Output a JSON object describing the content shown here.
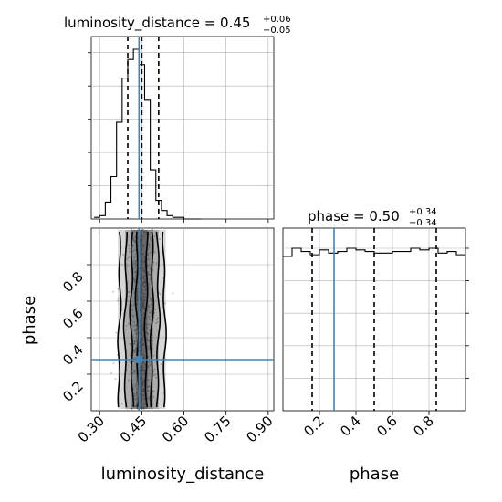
{
  "chart_data": {
    "type": "corner",
    "colors": {
      "truth": "#4682b4",
      "line": "#000000",
      "grid": "#b0b0b0",
      "points": "#9a9a9a"
    },
    "panels": {
      "top_left": {
        "type": "histogram",
        "variable": "luminosity_distance",
        "title_main": "luminosity_distance = 0.45",
        "title_sup": "+0.06",
        "title_sub": "−0.05",
        "xlim": [
          0.27,
          0.92
        ],
        "bin_edges": [
          0.28,
          0.3,
          0.32,
          0.34,
          0.36,
          0.38,
          0.4,
          0.42,
          0.44,
          0.46,
          0.48,
          0.5,
          0.52,
          0.54,
          0.56,
          0.58,
          0.6,
          0.62,
          0.64,
          0.66
        ],
        "counts": [
          0.01,
          0.02,
          0.1,
          0.25,
          0.57,
          0.83,
          0.94,
          1.0,
          0.91,
          0.7,
          0.29,
          0.11,
          0.05,
          0.02,
          0.01,
          0.01,
          0.0,
          0.0,
          0.0
        ],
        "quantiles": [
          0.4,
          0.45,
          0.51
        ],
        "truth": 0.44
      },
      "bottom_left": {
        "type": "2d-density",
        "xlabel": "luminosity_distance",
        "ylabel": "phase",
        "xlim": [
          0.27,
          0.92
        ],
        "ylim": [
          0.0,
          1.0
        ],
        "xticks": [
          "0.30",
          "0.45",
          "0.60",
          "0.75",
          "0.90"
        ],
        "xtick_values": [
          0.3,
          0.45,
          0.6,
          0.75,
          0.9
        ],
        "yticks": [
          "0.2",
          "0.4",
          "0.6",
          "0.8"
        ],
        "ytick_values": [
          0.2,
          0.4,
          0.6,
          0.8
        ],
        "truth_x": 0.44,
        "truth_y": 0.28
      },
      "bottom_right": {
        "type": "histogram",
        "variable": "phase",
        "xlabel": "phase",
        "title_main": "phase = 0.50",
        "title_sup": "+0.34",
        "title_sub": "−0.34",
        "xlim": [
          0.0,
          1.0
        ],
        "xticks": [
          "0.2",
          "0.4",
          "0.6",
          "0.8"
        ],
        "xtick_values": [
          0.2,
          0.4,
          0.6,
          0.8
        ],
        "bin_edges": [
          0.0,
          0.05,
          0.1,
          0.15,
          0.2,
          0.25,
          0.3,
          0.35,
          0.4,
          0.45,
          0.5,
          0.55,
          0.6,
          0.65,
          0.7,
          0.75,
          0.8,
          0.85,
          0.9,
          0.95,
          1.0
        ],
        "counts": [
          0.95,
          1.0,
          0.98,
          0.96,
          0.99,
          0.97,
          0.98,
          1.0,
          0.99,
          0.98,
          0.97,
          0.97,
          0.98,
          0.98,
          1.0,
          0.99,
          1.0,
          0.97,
          0.98,
          0.96
        ],
        "quantiles": [
          0.16,
          0.5,
          0.84
        ],
        "truth": 0.28
      }
    }
  }
}
